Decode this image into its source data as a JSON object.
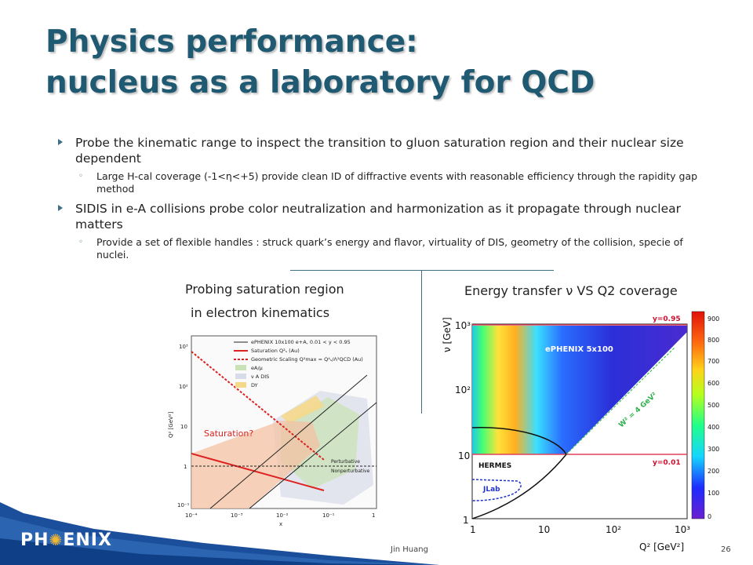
{
  "slide": {
    "title_line1": "Physics performance:",
    "title_line2": "nucleus as a laboratory for QCD",
    "bullets": [
      {
        "text": "Probe the kinematic range to inspect the transition to gluon saturation region and their nuclear size dependent",
        "sub": "Large H-cal coverage (-1<η<+5) provide clean ID of diffractive events with reasonable efficiency through the rapidity gap method"
      },
      {
        "text": "SIDIS in e-A collisions probe color neutralization and harmonization as it propagate through nuclear matters",
        "sub": "Provide a set of flexible handles : struck quark’s energy and flavor, virtuality of DIS, geometry of the collision, specie of nuclei."
      }
    ],
    "left_caption_line1": "Probing saturation region",
    "left_caption_line2": "in electron kinematics",
    "right_caption": "Energy transfer ν VS Q2 coverage",
    "footer_author": "Jin Huang",
    "page_number": "26",
    "logo_pre": "PH",
    "logo_post": "ENIX"
  },
  "left_plot": {
    "ylabel": "Q² [GeV²]",
    "xlabel": "x",
    "x_ticks": [
      "10⁻⁴",
      "10⁻³",
      "10⁻²",
      "10⁻¹",
      "1"
    ],
    "y_ticks": [
      "10³",
      "10²",
      "10",
      "1",
      "10⁻¹"
    ],
    "legend": [
      "ePHENIX 10x100 e+A, 0.01 < y < 0.95",
      "Saturation Q²ₛ (Au)",
      "Geometric Scaling Q²max = Q⁴ₛ/Λ²QCD (Au)",
      "eA/μ",
      "ν A DIS",
      "DY"
    ],
    "saturation_label": "Saturation?",
    "perturbative_label": "Perturbative",
    "nonperturbative_label": "Nonperturbative"
  },
  "right_plot": {
    "ylabel": "ν [GeV]",
    "xlabel": "Q² [GeV²]",
    "x_ticks": [
      "1",
      "10",
      "10²",
      "10³"
    ],
    "y_ticks": [
      "10³",
      "10²",
      "10",
      "1"
    ],
    "colorbar_ticks": [
      "900",
      "800",
      "700",
      "600",
      "500",
      "400",
      "300",
      "200",
      "100",
      "0"
    ],
    "title_inside": "ePHENIX 5x100",
    "y_high_label": "y=0.95",
    "y_low_label": "y=0.01",
    "w2_label": "W² = 4 GeV²",
    "hermes_label": "HERMES",
    "jlab_label": "JLab"
  },
  "colors": {
    "title": "#1f5a72",
    "accent": "#3f6f87",
    "footer_blue": "#1b4f9c"
  }
}
